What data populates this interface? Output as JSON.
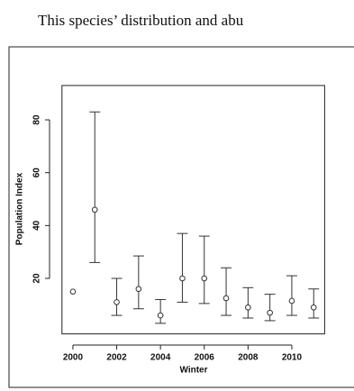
{
  "intro_text": "This species’ distribution and abu",
  "chart_data": {
    "type": "errorbar",
    "x_label": "Winter",
    "y_label": "Population Index",
    "x": [
      2000,
      2001,
      2002,
      2003,
      2004,
      2005,
      2006,
      2007,
      2008,
      2009,
      2010,
      2011
    ],
    "values": [
      15,
      46,
      11,
      16,
      6,
      20,
      20,
      12.5,
      9,
      7,
      11.5,
      9
    ],
    "lower": [
      null,
      26,
      6,
      8.5,
      3,
      11,
      10.5,
      6,
      5,
      4,
      6,
      5
    ],
    "upper": [
      null,
      83,
      20,
      28.5,
      12,
      37,
      36,
      24,
      16.5,
      14,
      21,
      16
    ],
    "color": "#333333",
    "xlim": [
      1999.5,
      2011.5
    ],
    "xticks": [
      2000,
      2002,
      2004,
      2006,
      2008,
      2010
    ],
    "ylim": [
      -1,
      93
    ],
    "yticks": [
      20,
      40,
      60,
      80
    ]
  }
}
